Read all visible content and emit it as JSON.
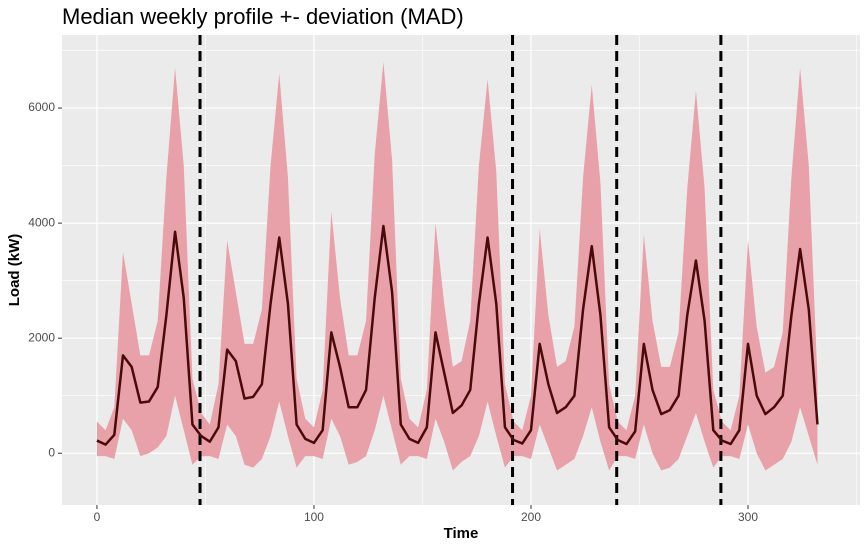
{
  "chart_data": {
    "type": "band_line",
    "title": "Median weekly profile +- deviation (MAD)",
    "x_label": "Time",
    "y_label": "Load (kW)",
    "x": [
      0,
      4,
      8,
      12,
      16,
      20,
      24,
      28,
      32,
      36,
      40,
      44,
      48,
      52,
      56,
      60,
      64,
      68,
      72,
      76,
      80,
      84,
      88,
      92,
      96,
      100,
      104,
      108,
      112,
      116,
      120,
      124,
      128,
      132,
      136,
      140,
      144,
      148,
      152,
      156,
      160,
      164,
      168,
      172,
      176,
      180,
      184,
      188,
      192,
      196,
      200,
      204,
      208,
      212,
      216,
      220,
      224,
      228,
      232,
      236,
      240,
      244,
      248,
      252,
      256,
      260,
      264,
      268,
      272,
      276,
      280,
      284,
      288,
      292,
      296,
      300,
      304,
      308,
      312,
      316,
      320,
      324,
      328,
      332
    ],
    "values": [
      220,
      150,
      320,
      1700,
      1500,
      880,
      900,
      1150,
      2400,
      3850,
      2700,
      500,
      300,
      200,
      450,
      1800,
      1600,
      950,
      980,
      1200,
      2600,
      3750,
      2600,
      500,
      250,
      180,
      400,
      2100,
      1500,
      800,
      800,
      1100,
      2700,
      3950,
      2800,
      500,
      250,
      180,
      450,
      2100,
      1400,
      700,
      830,
      1100,
      2600,
      3750,
      2600,
      450,
      230,
      170,
      400,
      1900,
      1200,
      700,
      800,
      1000,
      2500,
      3600,
      2400,
      450,
      230,
      160,
      380,
      1900,
      1100,
      680,
      750,
      1000,
      2400,
      3350,
      2300,
      400,
      220,
      160,
      400,
      1900,
      1000,
      680,
      800,
      1000,
      2400,
      3550,
      2500,
      500
    ],
    "band_upper": [
      550,
      400,
      800,
      3500,
      2600,
      1700,
      1700,
      2300,
      4800,
      6700,
      5000,
      1300,
      700,
      500,
      1200,
      3700,
      2800,
      1900,
      1900,
      2500,
      5000,
      6600,
      4800,
      1300,
      600,
      450,
      1100,
      4200,
      2700,
      1700,
      1700,
      2300,
      5200,
      6800,
      5100,
      1300,
      600,
      450,
      1100,
      4000,
      2600,
      1500,
      1600,
      2300,
      5000,
      6500,
      4900,
      1200,
      550,
      400,
      1000,
      3900,
      2400,
      1500,
      1600,
      2200,
      4800,
      6400,
      4700,
      1200,
      550,
      400,
      1000,
      3800,
      2300,
      1500,
      1500,
      2100,
      4600,
      6300,
      4600,
      1100,
      550,
      400,
      1000,
      3700,
      2200,
      1400,
      1500,
      2100,
      4800,
      6700,
      5000,
      1300
    ],
    "band_lower": [
      -50,
      -50,
      -100,
      600,
      400,
      -50,
      0,
      100,
      300,
      1000,
      400,
      -200,
      -50,
      -50,
      -100,
      500,
      300,
      -200,
      -250,
      -100,
      300,
      900,
      300,
      -250,
      -50,
      -50,
      -100,
      600,
      300,
      -200,
      -150,
      -50,
      400,
      1000,
      400,
      -200,
      -50,
      -50,
      -100,
      600,
      200,
      -300,
      -150,
      -50,
      300,
      900,
      300,
      -250,
      -50,
      -50,
      -100,
      500,
      100,
      -300,
      -200,
      -100,
      300,
      800,
      200,
      -300,
      -50,
      -50,
      -100,
      500,
      0,
      -300,
      -250,
      -100,
      300,
      700,
      200,
      -250,
      -50,
      -50,
      -100,
      500,
      0,
      -300,
      -200,
      -100,
      200,
      800,
      300,
      -200
    ],
    "color": "#4a0a0a",
    "band_color": "#e8a1a8",
    "vlines": [
      47.5,
      191.5,
      239.5,
      287.5
    ],
    "vline_color": "#000000",
    "vline_dash": true,
    "xlim": [
      -16.1,
      351.6
    ],
    "ylim": [
      -900,
      7270
    ],
    "xticks": [
      0,
      100,
      200,
      300
    ],
    "yticks": [
      0,
      2000,
      4000,
      6000
    ],
    "x_minor_ticks": [
      50,
      150,
      250,
      350
    ],
    "y_minor_ticks": [
      1000,
      3000,
      5000,
      7000
    ],
    "grid": true
  }
}
